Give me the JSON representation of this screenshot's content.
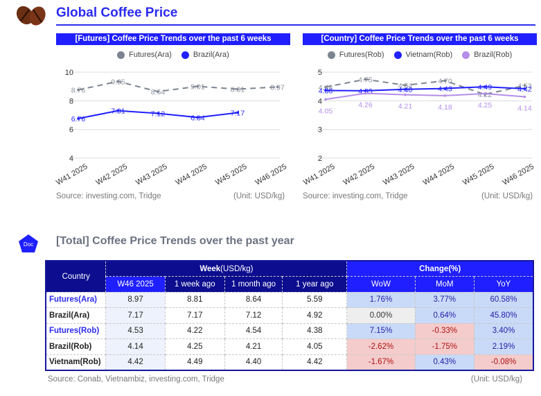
{
  "header": {
    "title": "Global Coffee Price",
    "logo_icon": "coffee-beans-icon"
  },
  "charts": {
    "left": {
      "title": "[Futures] Coffee Price Trends over the past 6 weeks",
      "source": "Source: investing.com, Tridge",
      "unit": "(Unit: USD/kg)"
    },
    "right": {
      "title": "[Country] Coffee Price Trends over the past 6 weeks",
      "source": "Source: investing.com, Tridge",
      "unit": "(Unit: USD/kg)"
    }
  },
  "chart_data": [
    {
      "type": "line",
      "title": "[Futures] Coffee Price Trends over the past 6 weeks",
      "x": [
        "W41 2025",
        "W42 2025",
        "W43 2025",
        "W44 2025",
        "W45 2025",
        "W46 2025"
      ],
      "ylim": [
        4,
        10
      ],
      "yticks": [
        4,
        6,
        8,
        10
      ],
      "grid": true,
      "legend": "top-center",
      "series": [
        {
          "name": "Futures(Ara)",
          "color": "#7b8490",
          "dashed": true,
          "values": [
            8.76,
            9.35,
            8.64,
            9.01,
            8.81,
            8.97
          ],
          "labels": [
            "8.76",
            "9.35",
            "8:64",
            "9:01",
            "8:81",
            "8.97"
          ]
        },
        {
          "name": "Brazil(Ara)",
          "color": "#1f1fff",
          "dashed": false,
          "values": [
            6.76,
            7.31,
            7.12,
            6.84,
            7.17,
            null
          ],
          "labels": [
            "6.76",
            "7:31",
            "7:12",
            "6:84",
            "7:17",
            ""
          ]
        }
      ]
    },
    {
      "type": "line",
      "title": "[Country] Coffee Price Trends over the past 6 weeks",
      "x": [
        "W41 2025",
        "W42 2025",
        "W43 2025",
        "W44 2025",
        "W45 2025",
        "W46 2025"
      ],
      "ylim": [
        2,
        5
      ],
      "yticks": [
        2,
        3,
        4,
        5
      ],
      "grid": true,
      "legend": "top-center",
      "series": [
        {
          "name": "Futures(Rob)",
          "color": "#7b8490",
          "dashed": true,
          "values": [
            4.48,
            4.75,
            4.54,
            4.7,
            4.22,
            4.53
          ],
          "labels": [
            "4.48",
            "4.75",
            "4:54",
            "4:70",
            "4:22",
            "4:53"
          ]
        },
        {
          "name": "Vietnam(Rob)",
          "color": "#1f1fff",
          "dashed": false,
          "values": [
            4.36,
            4.35,
            4.4,
            4.43,
            4.49,
            4.42
          ],
          "labels": [
            "4:36",
            "4:35",
            "4:40",
            "4:43",
            "4:49",
            "4:42"
          ]
        },
        {
          "name": "Brazil(Rob)",
          "color": "#b48ee8",
          "dashed": false,
          "values": [
            4.05,
            4.26,
            4.21,
            4.18,
            4.25,
            4.14
          ],
          "labels": [
            "4.05",
            "4.26",
            "4.21",
            "4.18",
            "4.25",
            "4.14"
          ]
        }
      ]
    }
  ],
  "section": {
    "icon_label": "Doc",
    "title": "[Total] Coffee Price Trends over the past year"
  },
  "table": {
    "group_week": "Week",
    "group_week_unit": "(USD/kg)",
    "group_change": "Change(%)",
    "columns": [
      "Country",
      "W46 2025",
      "1 week ago",
      "1 month ago",
      "1 year ago",
      "WoW",
      "MoM",
      "YoY"
    ],
    "rows": [
      {
        "country": "Futures(Ara)",
        "highlight": true,
        "values": [
          "8.97",
          "8.81",
          "8.64",
          "5.59"
        ],
        "changes": [
          "1.76%",
          "3.77%",
          "60.58%"
        ],
        "signs": [
          "pos",
          "pos",
          "pos"
        ]
      },
      {
        "country": "Brazil(Ara)",
        "highlight": false,
        "values": [
          "7.17",
          "7.17",
          "7.12",
          "4.92"
        ],
        "changes": [
          "0.00%",
          "0.64%",
          "45.80%"
        ],
        "signs": [
          "zero",
          "pos",
          "pos"
        ]
      },
      {
        "country": "Futures(Rob)",
        "highlight": true,
        "values": [
          "4.53",
          "4.22",
          "4.54",
          "4.38"
        ],
        "changes": [
          "7.15%",
          "-0.33%",
          "3.40%"
        ],
        "signs": [
          "pos",
          "neg",
          "pos"
        ]
      },
      {
        "country": "Brazil(Rob)",
        "highlight": false,
        "values": [
          "4.14",
          "4.25",
          "4.21",
          "4.05"
        ],
        "changes": [
          "-2.62%",
          "-1.75%",
          "2.19%"
        ],
        "signs": [
          "neg",
          "neg",
          "pos"
        ]
      },
      {
        "country": "Vietnam(Rob)",
        "highlight": false,
        "values": [
          "4.42",
          "4.49",
          "4.40",
          "4.42"
        ],
        "changes": [
          "-1.67%",
          "0.43%",
          "-0.08%"
        ],
        "signs": [
          "neg",
          "pos",
          "neg"
        ]
      }
    ],
    "source": "Source: Conab, Vietnambiz, investing.com, Tridge",
    "unit": "(Unit: USD/kg)"
  }
}
